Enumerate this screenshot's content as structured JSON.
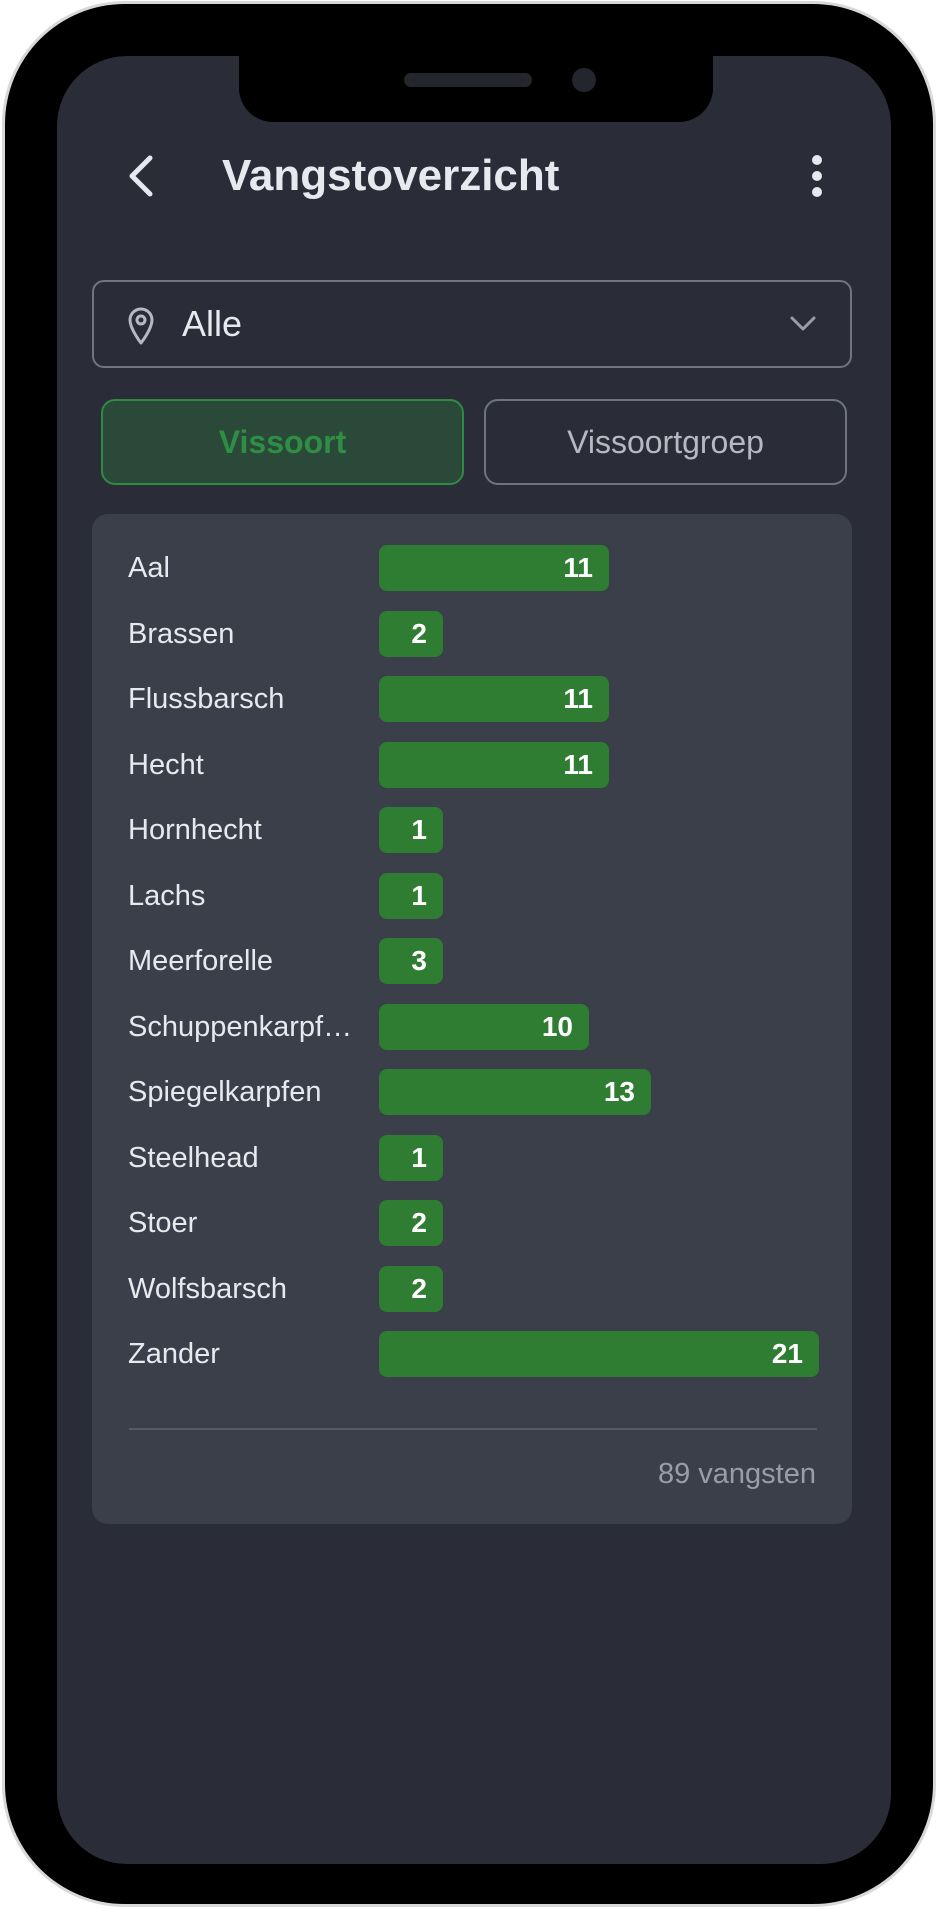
{
  "header": {
    "back_icon": "chevron-left-icon",
    "title": "Vangstoverzicht",
    "menu_icon": "more-vertical-icon"
  },
  "location_filter": {
    "icon": "map-pin-icon",
    "value": "Alle",
    "dropdown_icon": "chevron-down-icon"
  },
  "tabs": [
    {
      "label": "Vissoort",
      "active": true
    },
    {
      "label": "Vissoortgroep",
      "active": false
    }
  ],
  "colors": {
    "accent": "#2e7d32",
    "background": "#2a2d38",
    "card": "#3b3f4a"
  },
  "chart_data": {
    "type": "bar",
    "orientation": "horizontal",
    "categories": [
      "Aal",
      "Brassen",
      "Flussbarsch",
      "Hecht",
      "Hornhecht",
      "Lachs",
      "Meerforelle",
      "Schuppenkarpf…",
      "Spiegelkarpfen",
      "Steelhead",
      "Stoer",
      "Wolfsbarsch",
      "Zander"
    ],
    "values": [
      11,
      2,
      11,
      11,
      1,
      1,
      3,
      10,
      13,
      1,
      2,
      2,
      21
    ],
    "data_labels": [
      "11",
      "2",
      "11",
      "11",
      "1",
      "1",
      "3",
      "10",
      "13",
      "1",
      "2",
      "2",
      "21"
    ]
  },
  "total_label": "89 vangsten"
}
